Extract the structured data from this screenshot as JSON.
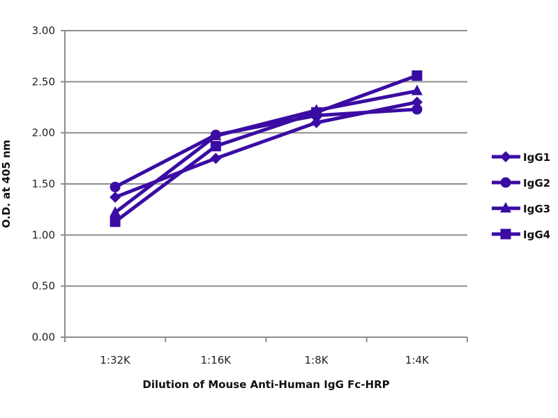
{
  "chart_data": {
    "type": "line",
    "title": "",
    "xlabel": "Dilution of Mouse Anti-Human IgG Fc-HRP",
    "ylabel": "O.D. at 405 nm",
    "categories": [
      "1:32K",
      "1:16K",
      "1:8K",
      "1:4K"
    ],
    "ylim": [
      0,
      3
    ],
    "yticks": [
      "0.00",
      "0.50",
      "1.00",
      "1.50",
      "2.00",
      "2.50",
      "3.00"
    ],
    "grid": true,
    "legend_position": "right",
    "color": "#3a0ca3",
    "series": [
      {
        "name": "IgG1",
        "marker": "diamond",
        "values": [
          1.37,
          1.75,
          2.1,
          2.3
        ]
      },
      {
        "name": "IgG2",
        "marker": "circle",
        "values": [
          1.47,
          1.98,
          2.17,
          2.23
        ]
      },
      {
        "name": "IgG3",
        "marker": "triangle",
        "values": [
          1.22,
          1.97,
          2.22,
          2.41
        ]
      },
      {
        "name": "IgG4",
        "marker": "square",
        "values": [
          1.13,
          1.87,
          2.2,
          2.56
        ]
      }
    ]
  }
}
